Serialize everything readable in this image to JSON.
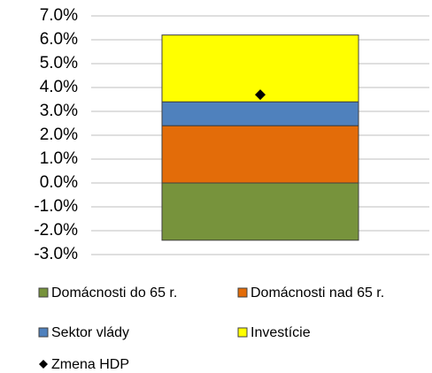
{
  "chart_data": {
    "type": "stacked-bar",
    "categories": [
      null
    ],
    "series": [
      {
        "name": "Domácnosti do 65 r.",
        "color": "#77933c",
        "values": [
          -2.4
        ]
      },
      {
        "name": "Domácnosti nad 65 r.",
        "color": "#e36c09",
        "values": [
          2.4
        ]
      },
      {
        "name": "Sektor vlády",
        "color": "#4f81bd",
        "values": [
          1.0
        ]
      },
      {
        "name": "Investície",
        "color": "#ffff00",
        "values": [
          2.8
        ]
      },
      {
        "name": "Zmena HDP",
        "type": "marker",
        "color": "#000000",
        "values": [
          3.7
        ]
      }
    ],
    "ylim": [
      -3,
      7
    ],
    "yticks": [
      {
        "value": 7,
        "label": "7.0%"
      },
      {
        "value": 6,
        "label": "6.0%"
      },
      {
        "value": 5,
        "label": "5.0%"
      },
      {
        "value": 4,
        "label": "4.0%"
      },
      {
        "value": 3,
        "label": "3.0%"
      },
      {
        "value": 2,
        "label": "2.0%"
      },
      {
        "value": 1,
        "label": "1.0%"
      },
      {
        "value": 0,
        "label": "0.0%"
      },
      {
        "value": -1,
        "label": "-1.0%"
      },
      {
        "value": -2,
        "label": "-2.0%"
      },
      {
        "value": -3,
        "label": "-3.0%"
      }
    ],
    "grid": true
  }
}
